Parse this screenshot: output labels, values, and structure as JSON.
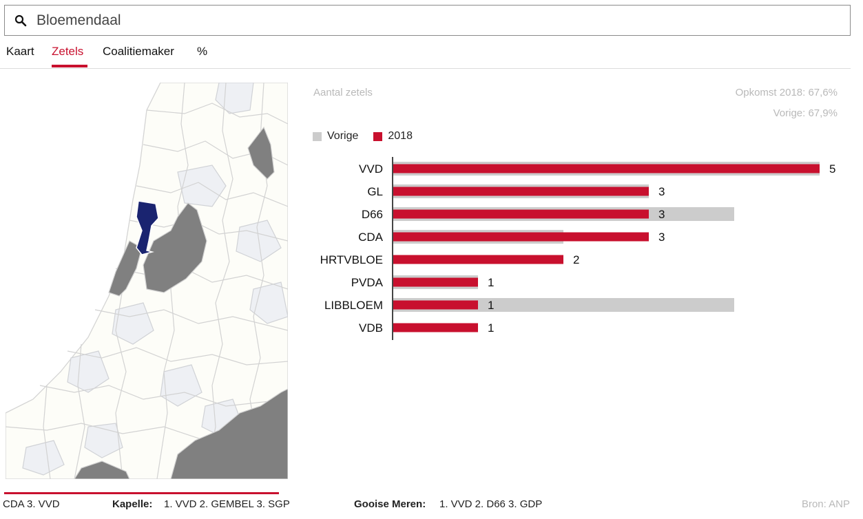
{
  "search": {
    "value": "Bloemendaal"
  },
  "tabs": [
    {
      "label": "Kaart",
      "active": false
    },
    {
      "label": "Zetels",
      "active": true
    },
    {
      "label": "Coalitiemaker",
      "active": false
    },
    {
      "label": "%",
      "active": false
    }
  ],
  "colors": {
    "accent": "#c8102e",
    "previous": "#cccccc",
    "selected_region": "#1a2470",
    "winner_region": "#808080"
  },
  "chart": {
    "title": "Aantal zetels",
    "turnout_2018": "Opkomst 2018: 67,6%",
    "turnout_previous": "Vorige: 67,9%",
    "legend": {
      "previous": "Vorige",
      "current": "2018"
    }
  },
  "chart_data": {
    "type": "bar",
    "orientation": "horizontal",
    "categories": [
      "VVD",
      "GL",
      "D66",
      "CDA",
      "HRTVBLOE",
      "PVDA",
      "LIBBLOEM",
      "VDB"
    ],
    "series": [
      {
        "name": "Vorige",
        "values": [
          5,
          3,
          4,
          2,
          0,
          1,
          4,
          0
        ]
      },
      {
        "name": "2018",
        "values": [
          5,
          3,
          3,
          3,
          2,
          1,
          1,
          1
        ]
      }
    ],
    "xlim": [
      0,
      5
    ]
  },
  "ticker": [
    {
      "text": "CDA   3. VVD"
    },
    {
      "place": "Kapelle:",
      "text": "1. VVD   2. GEMBEL   3. SGP"
    },
    {
      "place": "Gooise Meren:",
      "text": "1. VVD   2. D66   3. GDP"
    }
  ],
  "source": "Bron: ANP"
}
